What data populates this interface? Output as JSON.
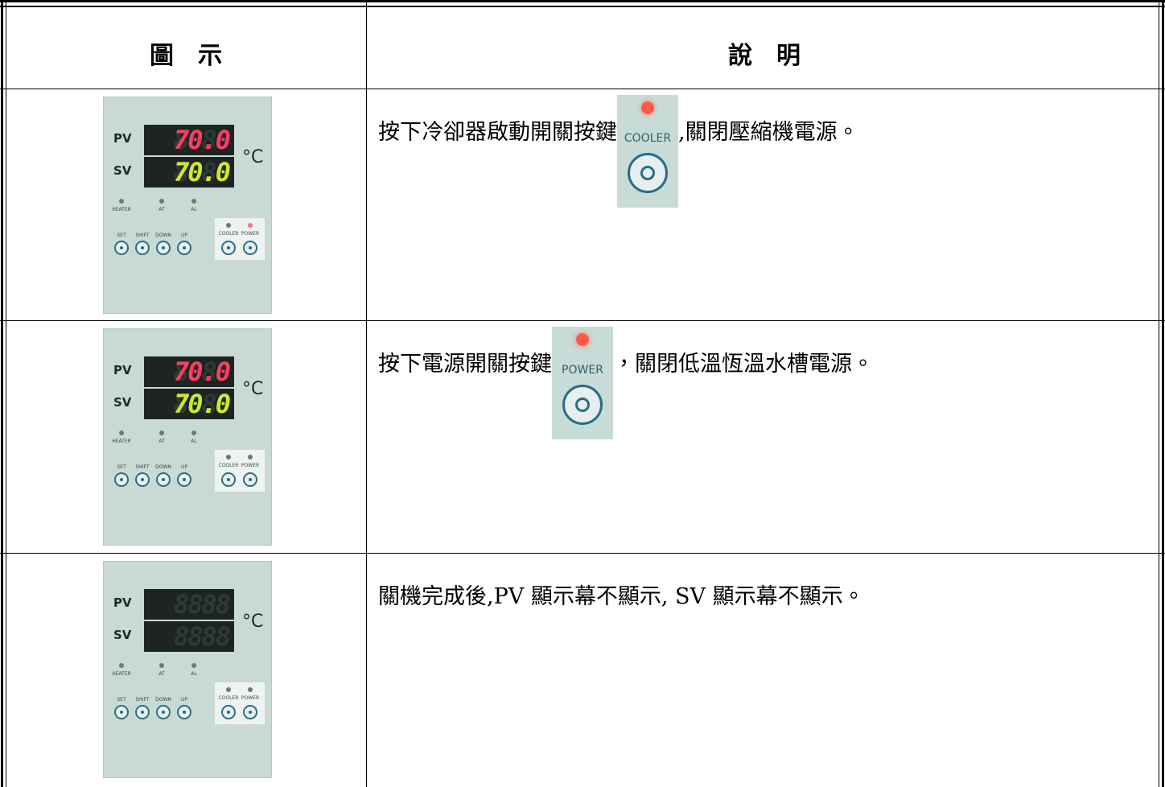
{
  "table": {
    "header": [
      "圖　示",
      "說　明"
    ],
    "rows": [
      {
        "panel": {
          "pv": "70.0",
          "sv": "70.0"
        },
        "description": {
          "before": "按下冷卻器啟動開關按鍵",
          "icon": "COOLER",
          "after": ",關閉壓縮機電源。"
        }
      },
      {
        "panel": {
          "pv": "70.0",
          "sv": "70.0"
        },
        "description": {
          "before": "按下電源開關按鍵",
          "icon": "POWER",
          "after": "，關閉低溫恆溫水槽電源。"
        }
      },
      {
        "panel": {
          "pv": null,
          "sv": null
        },
        "description": {
          "before": "關機完成後,PV 顯示幕不顯示, SV 顯示幕不顯示。"
        }
      }
    ]
  },
  "panel_labels": {
    "pv": "PV",
    "sv": "SV",
    "unit": "°C",
    "ghost": "8888",
    "leds": [
      "HEATER",
      "AT",
      "AL"
    ],
    "buttons": [
      "SET",
      "SHIFT",
      "DOWN",
      "UP"
    ],
    "keys": [
      "COOLER",
      "POWER"
    ]
  }
}
